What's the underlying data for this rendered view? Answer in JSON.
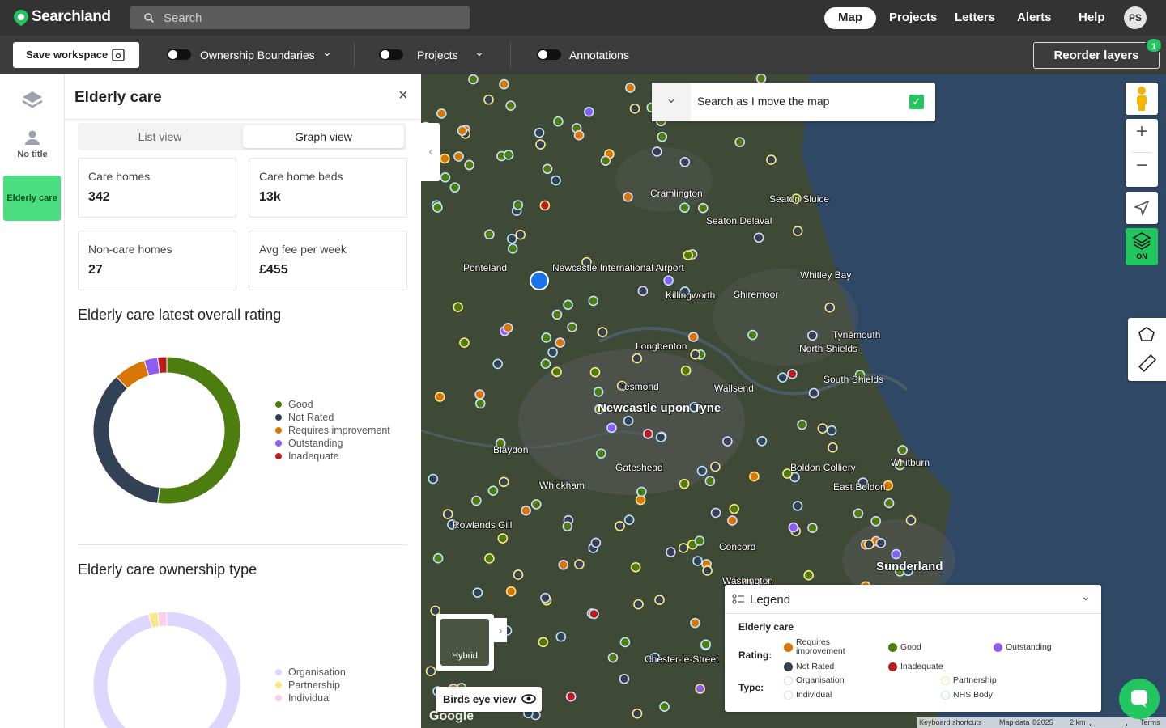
{
  "header": {
    "brand": "Searchland",
    "search_placeholder": "Search",
    "nav": [
      "Map",
      "Projects",
      "Letters",
      "Alerts",
      "Help"
    ],
    "avatar": "PS"
  },
  "toolbar": {
    "save": "Save workspace",
    "toggles": [
      "Ownership Boundaries",
      "Projects",
      "Annotations"
    ],
    "reorder": "Reorder layers",
    "badge": "1"
  },
  "sidebar": {
    "items": [
      "No title",
      "Elderly care"
    ]
  },
  "panel": {
    "title": "Elderly care",
    "tabs": [
      "List view",
      "Graph view"
    ],
    "stats": [
      {
        "label": "Care homes",
        "value": "342"
      },
      {
        "label": "Care home beds",
        "value": "13k"
      },
      {
        "label": "Non-care homes",
        "value": "27"
      },
      {
        "label": "Avg fee per week",
        "value": "£455"
      }
    ],
    "rating_chart": {
      "type": "pie",
      "title": "Elderly care latest overall rating",
      "categories": [
        "Good",
        "Not Rated",
        "Requires improvement",
        "Outstanding",
        "Inadequate"
      ],
      "values": [
        52,
        36,
        7,
        3,
        2
      ],
      "colors": [
        "#4d7c0f",
        "#334155",
        "#d97706",
        "#8b5cf6",
        "#b91c1c"
      ]
    },
    "ownership_chart": {
      "type": "pie",
      "title": "Elderly care ownership type",
      "categories": [
        "Organisation",
        "Partnership",
        "Individual"
      ],
      "values": [
        96,
        2,
        2
      ],
      "colors": [
        "#ddd6fe",
        "#fde68a",
        "#fbcfe8"
      ]
    }
  },
  "map": {
    "search_toggle": "Search as I move the map",
    "layer_on": "ON",
    "hybrid": "Hybrid",
    "birds_eye": "Birds eye view",
    "google": "Google",
    "labels": [
      "Cramlington",
      "Seaton Sluice",
      "Seaton Delaval",
      "Ponteland",
      "Newcastle International Airport",
      "Killingworth",
      "Shiremoor",
      "Whitley Bay",
      "Longbenton",
      "Tynemouth",
      "North Shields",
      "Jesmond",
      "Wallsend",
      "South Shields",
      "Newcastle upon Tyne",
      "Blaydon",
      "Gateshead",
      "Whickham",
      "Boldon Colliery",
      "East Boldon",
      "Whitburn",
      "Rowlands Gill",
      "Concord",
      "Washington",
      "Sunderland",
      "Chester-le-Street"
    ],
    "legend": {
      "title": "Legend",
      "section": "Elderly care",
      "rating_label": "Rating:",
      "type_label": "Type:",
      "ratings": [
        {
          "name": "Requires improvement",
          "color": "#d97706"
        },
        {
          "name": "Good",
          "color": "#4d7c0f"
        },
        {
          "name": "Outstanding",
          "color": "#8b5cf6"
        },
        {
          "name": "Not Rated",
          "color": "#334155"
        },
        {
          "name": "Inadequate",
          "color": "#b91c1c"
        }
      ],
      "types": [
        {
          "name": "Organisation",
          "color": "#ddd6fe"
        },
        {
          "name": "Partnership",
          "color": "#fde68a"
        },
        {
          "name": "Individual",
          "color": "#fbcfe8"
        },
        {
          "name": "NHS Body",
          "color": "#bae6fd"
        }
      ]
    },
    "footer": [
      "Keyboard shortcuts",
      "Map data ©2025",
      "2 km",
      "Terms"
    ]
  }
}
